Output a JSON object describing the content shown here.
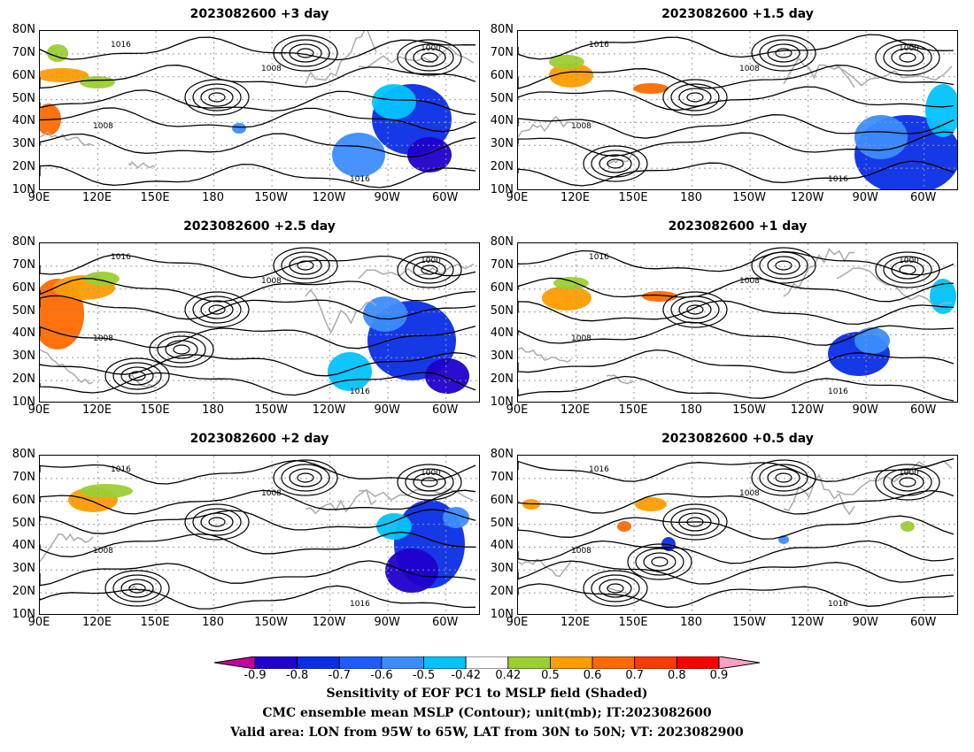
{
  "panels": [
    {
      "title": "2023082600  +3 day"
    },
    {
      "title": "2023082600  +1.5 day"
    },
    {
      "title": "2023082600  +2.5 day"
    },
    {
      "title": "2023082600  +1 day"
    },
    {
      "title": "2023082600  +2 day"
    },
    {
      "title": "2023082600  +0.5 day"
    }
  ],
  "axes": {
    "lat_labels": [
      "80N",
      "70N",
      "60N",
      "50N",
      "40N",
      "30N",
      "20N",
      "10N"
    ],
    "lon_labels": [
      "90E",
      "120E",
      "150E",
      "180",
      "150W",
      "120W",
      "90W",
      "60W"
    ]
  },
  "contour_labels": [
    "1016",
    "1008",
    "1000"
  ],
  "colorbar": {
    "ticks": [
      "-0.9",
      "-0.8",
      "-0.7",
      "-0.6",
      "-0.5",
      "-0.42",
      "0.42",
      "0.5",
      "0.6",
      "0.7",
      "0.8",
      "0.9"
    ],
    "colors": [
      "#c4009e",
      "#1f00cc",
      "#0a2ee6",
      "#1f5cff",
      "#3c8cff",
      "#00c3ff",
      "#ffffff",
      "#9ccf33",
      "#ff9c00",
      "#ff6a00",
      "#ff3a00",
      "#ff0000",
      "#ffa0c8"
    ]
  },
  "caption": {
    "line1": "Sensitivity of EOF PC1 to MSLP field (Shaded)",
    "line2": "CMC ensemble mean MSLP (Contour); unit(mb); IT:2023082600",
    "line3": "Valid area: LON from 95W to 65W, LAT from 30N to 50N; VT: 2023082900"
  }
}
